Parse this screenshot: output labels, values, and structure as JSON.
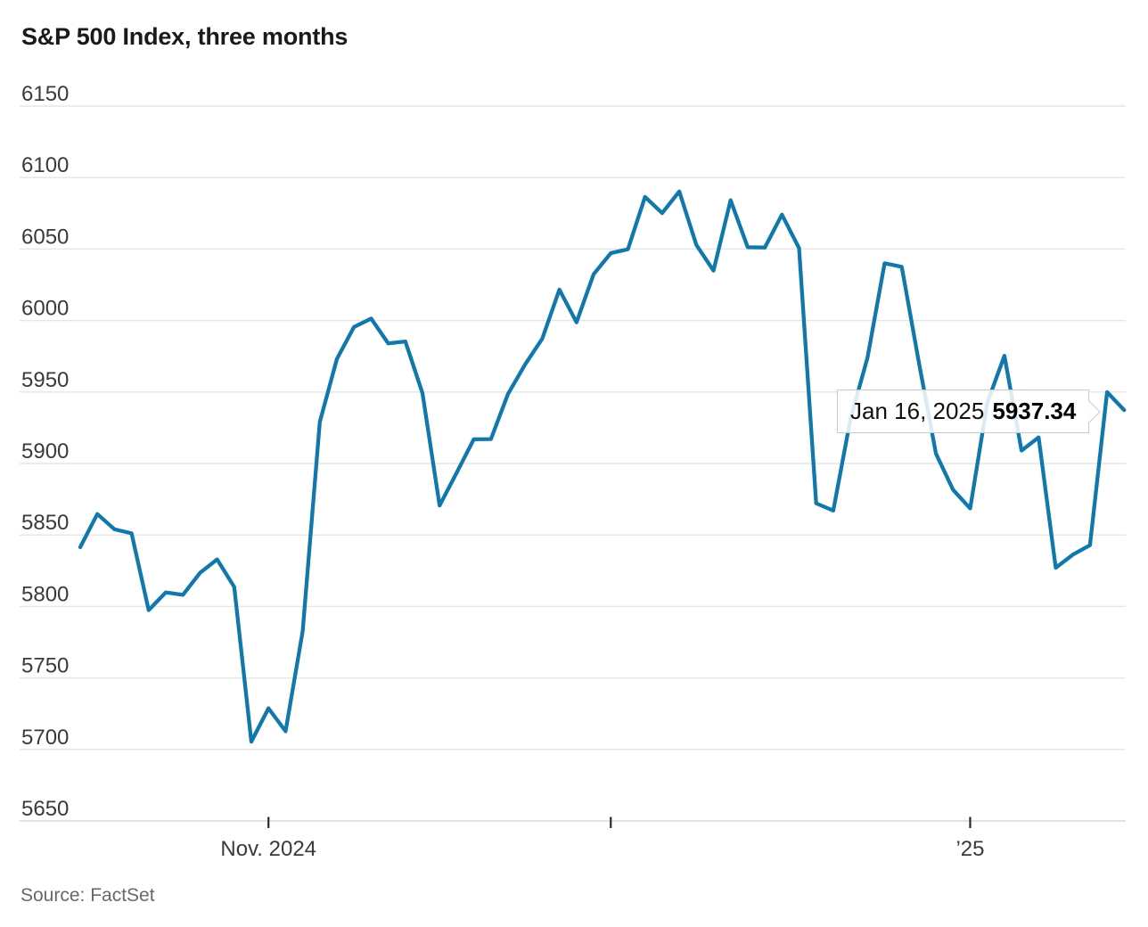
{
  "title": "S&P 500 Index, three months",
  "source": "Source: FactSet",
  "tooltip": {
    "date_label": "Jan 16, 2025",
    "value_label": "5937.34"
  },
  "colors": {
    "line": "#1178ac",
    "grid": "#e6e6e6",
    "axis_line": "#d9d9d9",
    "tick_mark": "#2b2b2b",
    "axis_text": "#3a3a3a",
    "title_text": "#1a1a1a",
    "source_text": "#696969",
    "tooltip_border": "#c9c9c9"
  },
  "chart_data": {
    "type": "line",
    "title": "S&P 500 Index, three months",
    "series_name": "S&P 500 Index daily close",
    "xlabel": "",
    "ylabel": "",
    "ylim": [
      5650,
      6150
    ],
    "grid": true,
    "legend": false,
    "y_ticks": [
      6150,
      6100,
      6050,
      6000,
      5950,
      5900,
      5850,
      5800,
      5750,
      5700,
      5650
    ],
    "x_ticks": [
      {
        "date": "2024-11-01",
        "label": "Nov. 2024"
      },
      {
        "date": "2024-12-02",
        "label": ""
      },
      {
        "date": "2025-01-02",
        "label": "’25"
      }
    ],
    "x": [
      "2024-10-17",
      "2024-10-18",
      "2024-10-21",
      "2024-10-22",
      "2024-10-23",
      "2024-10-24",
      "2024-10-25",
      "2024-10-28",
      "2024-10-29",
      "2024-10-30",
      "2024-10-31",
      "2024-11-01",
      "2024-11-04",
      "2024-11-05",
      "2024-11-06",
      "2024-11-07",
      "2024-11-08",
      "2024-11-11",
      "2024-11-12",
      "2024-11-13",
      "2024-11-14",
      "2024-11-15",
      "2024-11-18",
      "2024-11-19",
      "2024-11-20",
      "2024-11-21",
      "2024-11-22",
      "2024-11-25",
      "2024-11-26",
      "2024-11-27",
      "2024-11-29",
      "2024-12-02",
      "2024-12-03",
      "2024-12-04",
      "2024-12-05",
      "2024-12-06",
      "2024-12-09",
      "2024-12-10",
      "2024-12-11",
      "2024-12-12",
      "2024-12-13",
      "2024-12-16",
      "2024-12-17",
      "2024-12-18",
      "2024-12-19",
      "2024-12-20",
      "2024-12-23",
      "2024-12-24",
      "2024-12-26",
      "2024-12-27",
      "2024-12-30",
      "2024-12-31",
      "2025-01-02",
      "2025-01-03",
      "2025-01-06",
      "2025-01-07",
      "2025-01-08",
      "2025-01-10",
      "2025-01-13",
      "2025-01-14",
      "2025-01-15",
      "2025-01-16"
    ],
    "values": [
      5841.47,
      5864.67,
      5853.98,
      5851.2,
      5797.42,
      5809.86,
      5808.12,
      5823.52,
      5832.92,
      5813.67,
      5705.45,
      5728.8,
      5712.69,
      5782.76,
      5929.04,
      5973.1,
      5995.54,
      6001.35,
      5983.99,
      5985.38,
      5949.17,
      5870.62,
      5893.62,
      5916.98,
      5917.11,
      5948.71,
      5969.34,
      5987.37,
      6021.63,
      5998.74,
      6032.38,
      6047.15,
      6049.88,
      6086.49,
      6075.11,
      6090.27,
      6052.85,
      6034.91,
      6084.19,
      6051.25,
      6051.09,
      6074.08,
      6050.61,
      5872.16,
      5867.08,
      5930.85,
      5974.07,
      6040.04,
      6037.59,
      5970.84,
      5906.94,
      5881.63,
      5868.55,
      5942.47,
      5975.38,
      5909.03,
      5918.25,
      5827.04,
      5836.22,
      5842.91,
      5949.91,
      5937.34
    ],
    "annotation": {
      "date": "2025-01-16",
      "value": 5937.34,
      "text": "Jan 16, 2025 5937.34"
    }
  }
}
